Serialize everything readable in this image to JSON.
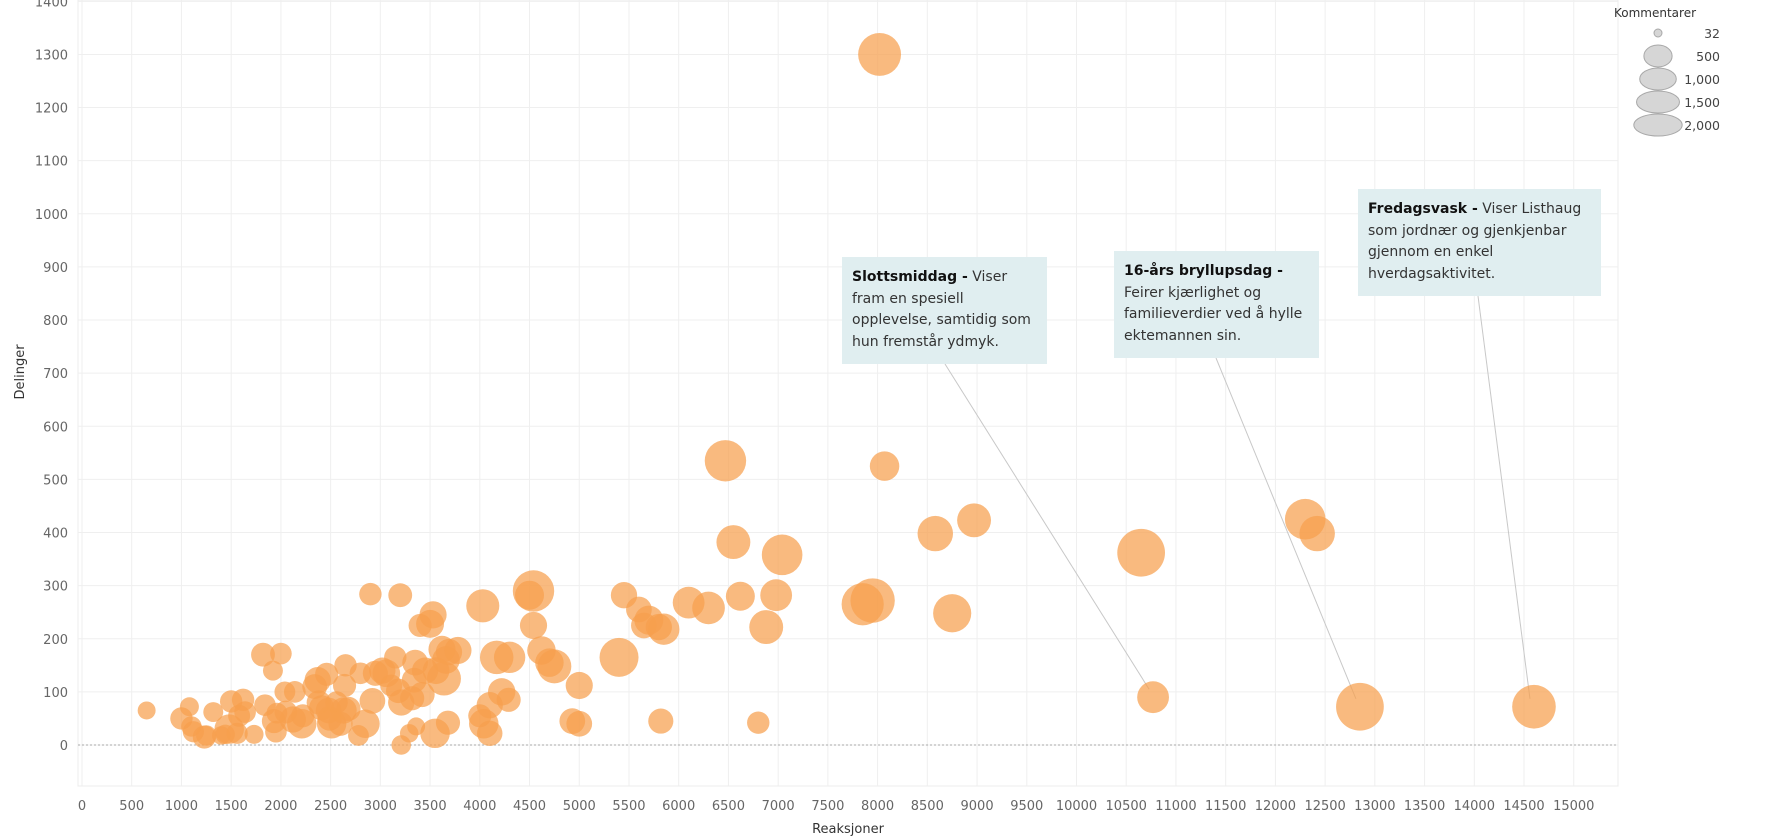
{
  "chart_data": {
    "type": "scatter",
    "xlabel": "Reaksjoner",
    "ylabel": "Delinger",
    "xlim": [
      0,
      15500
    ],
    "ylim": [
      -80,
      1400
    ],
    "x_ticks": [
      0,
      500,
      1000,
      1500,
      2000,
      2500,
      3000,
      3500,
      4000,
      4500,
      5000,
      5500,
      6000,
      6500,
      7000,
      7500,
      8000,
      8500,
      9000,
      9500,
      10000,
      10500,
      11000,
      11500,
      12000,
      12500,
      13000,
      13500,
      14000,
      14500,
      15000
    ],
    "y_ticks": [
      0,
      100,
      200,
      300,
      400,
      500,
      600,
      700,
      800,
      900,
      1000,
      1100,
      1200,
      1300,
      1400
    ],
    "grid": true,
    "point_color": "#f6a04d",
    "size_legend": {
      "title": "Kommentarer",
      "entries": [
        {
          "label": "32",
          "value": 32
        },
        {
          "label": "500",
          "value": 500
        },
        {
          "label": "1,000",
          "value": 1000
        },
        {
          "label": "1,500",
          "value": 1500
        },
        {
          "label": "2,000",
          "value": 2000
        }
      ]
    },
    "points": [
      {
        "x": 650,
        "y": 65,
        "size": 80
      },
      {
        "x": 1000,
        "y": 50,
        "size": 180
      },
      {
        "x": 1080,
        "y": 72,
        "size": 100
      },
      {
        "x": 1100,
        "y": 35,
        "size": 130
      },
      {
        "x": 1120,
        "y": 25,
        "size": 150
      },
      {
        "x": 1230,
        "y": 15,
        "size": 200
      },
      {
        "x": 1250,
        "y": 18,
        "size": 130
      },
      {
        "x": 1320,
        "y": 62,
        "size": 120
      },
      {
        "x": 1400,
        "y": 18,
        "size": 90
      },
      {
        "x": 1440,
        "y": 20,
        "size": 110
      },
      {
        "x": 1480,
        "y": 30,
        "size": 420
      },
      {
        "x": 1500,
        "y": 82,
        "size": 180
      },
      {
        "x": 1560,
        "y": 22,
        "size": 150
      },
      {
        "x": 1580,
        "y": 55,
        "size": 170
      },
      {
        "x": 1620,
        "y": 85,
        "size": 180
      },
      {
        "x": 1640,
        "y": 62,
        "size": 160
      },
      {
        "x": 1730,
        "y": 20,
        "size": 100
      },
      {
        "x": 1820,
        "y": 170,
        "size": 220
      },
      {
        "x": 1840,
        "y": 75,
        "size": 160
      },
      {
        "x": 1920,
        "y": 140,
        "size": 120
      },
      {
        "x": 1930,
        "y": 45,
        "size": 230
      },
      {
        "x": 1950,
        "y": 25,
        "size": 160
      },
      {
        "x": 1960,
        "y": 60,
        "size": 140
      },
      {
        "x": 2000,
        "y": 172,
        "size": 160
      },
      {
        "x": 2040,
        "y": 100,
        "size": 140
      },
      {
        "x": 2050,
        "y": 62,
        "size": 190
      },
      {
        "x": 2120,
        "y": 48,
        "size": 300
      },
      {
        "x": 2140,
        "y": 100,
        "size": 160
      },
      {
        "x": 2210,
        "y": 40,
        "size": 420
      },
      {
        "x": 2220,
        "y": 55,
        "size": 200
      },
      {
        "x": 2340,
        "y": 110,
        "size": 250
      },
      {
        "x": 2370,
        "y": 122,
        "size": 300
      },
      {
        "x": 2380,
        "y": 80,
        "size": 230
      },
      {
        "x": 2410,
        "y": 70,
        "size": 260
      },
      {
        "x": 2460,
        "y": 133,
        "size": 200
      },
      {
        "x": 2480,
        "y": 65,
        "size": 280
      },
      {
        "x": 2490,
        "y": 50,
        "size": 240
      },
      {
        "x": 2510,
        "y": 40,
        "size": 420
      },
      {
        "x": 2560,
        "y": 80,
        "size": 180
      },
      {
        "x": 2600,
        "y": 40,
        "size": 230
      },
      {
        "x": 2630,
        "y": 65,
        "size": 300
      },
      {
        "x": 2640,
        "y": 112,
        "size": 200
      },
      {
        "x": 2650,
        "y": 150,
        "size": 180
      },
      {
        "x": 2680,
        "y": 68,
        "size": 230
      },
      {
        "x": 2780,
        "y": 18,
        "size": 140
      },
      {
        "x": 2800,
        "y": 135,
        "size": 160
      },
      {
        "x": 2850,
        "y": 40,
        "size": 380
      },
      {
        "x": 2900,
        "y": 284,
        "size": 180
      },
      {
        "x": 2920,
        "y": 83,
        "size": 280
      },
      {
        "x": 2950,
        "y": 135,
        "size": 260
      },
      {
        "x": 3020,
        "y": 140,
        "size": 300
      },
      {
        "x": 3060,
        "y": 135,
        "size": 350
      },
      {
        "x": 3110,
        "y": 112,
        "size": 170
      },
      {
        "x": 3150,
        "y": 165,
        "size": 180
      },
      {
        "x": 3180,
        "y": 102,
        "size": 240
      },
      {
        "x": 3200,
        "y": 282,
        "size": 220
      },
      {
        "x": 3210,
        "y": 80,
        "size": 300
      },
      {
        "x": 3210,
        "y": 0,
        "size": 110
      },
      {
        "x": 3290,
        "y": 22,
        "size": 90
      },
      {
        "x": 3320,
        "y": 88,
        "size": 230
      },
      {
        "x": 3340,
        "y": 122,
        "size": 250
      },
      {
        "x": 3350,
        "y": 155,
        "size": 280
      },
      {
        "x": 3360,
        "y": 35,
        "size": 80
      },
      {
        "x": 3400,
        "y": 225,
        "size": 200
      },
      {
        "x": 3420,
        "y": 95,
        "size": 260
      },
      {
        "x": 3450,
        "y": 140,
        "size": 300
      },
      {
        "x": 3500,
        "y": 228,
        "size": 360
      },
      {
        "x": 3530,
        "y": 245,
        "size": 330
      },
      {
        "x": 3550,
        "y": 22,
        "size": 420
      },
      {
        "x": 3560,
        "y": 140,
        "size": 320
      },
      {
        "x": 3620,
        "y": 180,
        "size": 330
      },
      {
        "x": 3640,
        "y": 125,
        "size": 620
      },
      {
        "x": 3660,
        "y": 160,
        "size": 350
      },
      {
        "x": 3680,
        "y": 42,
        "size": 230
      },
      {
        "x": 3690,
        "y": 175,
        "size": 300
      },
      {
        "x": 3780,
        "y": 178,
        "size": 330
      },
      {
        "x": 4000,
        "y": 55,
        "size": 200
      },
      {
        "x": 4030,
        "y": 262,
        "size": 580
      },
      {
        "x": 4040,
        "y": 40,
        "size": 420
      },
      {
        "x": 4100,
        "y": 75,
        "size": 300
      },
      {
        "x": 4100,
        "y": 22,
        "size": 270
      },
      {
        "x": 4170,
        "y": 165,
        "size": 600
      },
      {
        "x": 4220,
        "y": 100,
        "size": 340
      },
      {
        "x": 4290,
        "y": 85,
        "size": 230
      },
      {
        "x": 4300,
        "y": 165,
        "size": 500
      },
      {
        "x": 4500,
        "y": 282,
        "size": 400
      },
      {
        "x": 4540,
        "y": 290,
        "size": 1050
      },
      {
        "x": 4540,
        "y": 225,
        "size": 330
      },
      {
        "x": 4620,
        "y": 178,
        "size": 380
      },
      {
        "x": 4700,
        "y": 155,
        "size": 380
      },
      {
        "x": 4750,
        "y": 148,
        "size": 620
      },
      {
        "x": 4930,
        "y": 45,
        "size": 280
      },
      {
        "x": 5000,
        "y": 112,
        "size": 330
      },
      {
        "x": 5000,
        "y": 40,
        "size": 280
      },
      {
        "x": 5400,
        "y": 165,
        "size": 900
      },
      {
        "x": 5450,
        "y": 282,
        "size": 300
      },
      {
        "x": 5600,
        "y": 255,
        "size": 280
      },
      {
        "x": 5650,
        "y": 225,
        "size": 280
      },
      {
        "x": 5700,
        "y": 235,
        "size": 400
      },
      {
        "x": 5800,
        "y": 222,
        "size": 300
      },
      {
        "x": 5820,
        "y": 45,
        "size": 260
      },
      {
        "x": 5850,
        "y": 218,
        "size": 500
      },
      {
        "x": 6100,
        "y": 268,
        "size": 520
      },
      {
        "x": 6300,
        "y": 258,
        "size": 560
      },
      {
        "x": 6470,
        "y": 535,
        "size": 1050
      },
      {
        "x": 6550,
        "y": 382,
        "size": 620
      },
      {
        "x": 6620,
        "y": 280,
        "size": 400
      },
      {
        "x": 6800,
        "y": 42,
        "size": 180
      },
      {
        "x": 6880,
        "y": 222,
        "size": 620
      },
      {
        "x": 6980,
        "y": 282,
        "size": 520
      },
      {
        "x": 7040,
        "y": 358,
        "size": 1000
      },
      {
        "x": 7850,
        "y": 265,
        "size": 1100
      },
      {
        "x": 7950,
        "y": 272,
        "size": 1250
      },
      {
        "x": 8020,
        "y": 1300,
        "size": 1150
      },
      {
        "x": 8070,
        "y": 525,
        "size": 420
      },
      {
        "x": 8580,
        "y": 398,
        "size": 700
      },
      {
        "x": 8750,
        "y": 248,
        "size": 850
      },
      {
        "x": 8970,
        "y": 423,
        "size": 620
      },
      {
        "x": 10650,
        "y": 362,
        "size": 1500
      },
      {
        "x": 10770,
        "y": 90,
        "size": 520
      },
      {
        "x": 12300,
        "y": 425,
        "size": 1000
      },
      {
        "x": 12420,
        "y": 398,
        "size": 700
      },
      {
        "x": 12850,
        "y": 72,
        "size": 1500
      },
      {
        "x": 14600,
        "y": 72,
        "size": 1200
      }
    ],
    "annotations": [
      {
        "title": "Slottsmiddag -",
        "text": "Viser fram en spesiell opplevelse, samtidig som hun fremstår ydmyk.",
        "target_x": 10770,
        "target_y": 90
      },
      {
        "title": "16-års bryllupsdag -",
        "text": "Feirer kjærlighet og familieverdier ved å hylle ektemannen sin.",
        "target_x": 12850,
        "target_y": 72
      },
      {
        "title": "Fredagsvask -",
        "text": "Viser Listhaug som jordnær og gjenkjenbar gjennom en enkel hverdagsaktivitet.",
        "target_x": 14600,
        "target_y": 72
      }
    ]
  }
}
